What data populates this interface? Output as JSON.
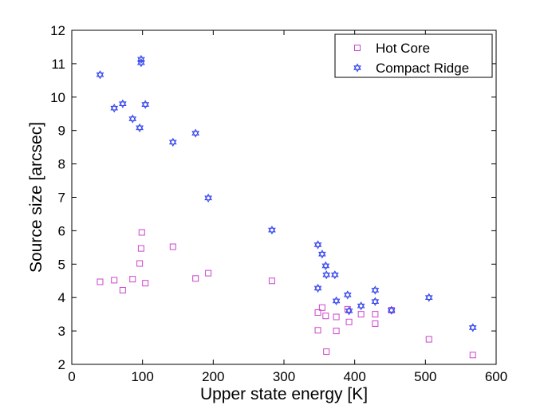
{
  "chart_data": {
    "type": "scatter",
    "title": "",
    "xlabel": "Upper state energy [K]",
    "ylabel": "Source size [arcsec]",
    "xlim": [
      0,
      600
    ],
    "ylim": [
      2,
      12
    ],
    "xticks": [
      "0",
      "100",
      "200",
      "300",
      "400",
      "500",
      "600"
    ],
    "yticks": [
      "2",
      "3",
      "4",
      "5",
      "6",
      "7",
      "8",
      "9",
      "10",
      "11",
      "12"
    ],
    "grid": false,
    "legend_position": "top-right",
    "series": [
      {
        "name": "Hot Core",
        "marker": "square",
        "color": "#cc44cc",
        "points": [
          [
            40,
            4.47
          ],
          [
            60,
            4.52
          ],
          [
            72,
            4.22
          ],
          [
            86,
            4.55
          ],
          [
            96,
            5.02
          ],
          [
            98,
            5.47
          ],
          [
            99,
            5.95
          ],
          [
            104,
            4.43
          ],
          [
            143,
            5.52
          ],
          [
            175,
            4.57
          ],
          [
            193,
            4.73
          ],
          [
            283,
            4.5
          ],
          [
            348,
            3.55
          ],
          [
            348,
            3.02
          ],
          [
            354,
            3.7
          ],
          [
            359,
            3.45
          ],
          [
            360,
            2.38
          ],
          [
            374,
            3.0
          ],
          [
            374,
            3.42
          ],
          [
            390,
            3.65
          ],
          [
            392,
            3.27
          ],
          [
            409,
            3.5
          ],
          [
            429,
            3.5
          ],
          [
            429,
            3.22
          ],
          [
            452,
            3.62
          ],
          [
            505,
            2.75
          ],
          [
            567,
            2.28
          ]
        ]
      },
      {
        "name": "Compact Ridge",
        "marker": "hexagram",
        "color": "#3344ee",
        "points": [
          [
            40,
            10.67
          ],
          [
            60,
            9.67
          ],
          [
            72,
            9.8
          ],
          [
            86,
            9.35
          ],
          [
            96,
            9.08
          ],
          [
            98,
            11.03
          ],
          [
            98,
            11.13
          ],
          [
            104,
            9.78
          ],
          [
            143,
            8.65
          ],
          [
            175,
            8.92
          ],
          [
            193,
            6.98
          ],
          [
            283,
            6.02
          ],
          [
            348,
            5.58
          ],
          [
            348,
            4.28
          ],
          [
            354,
            5.3
          ],
          [
            359,
            4.95
          ],
          [
            360,
            4.68
          ],
          [
            372,
            4.68
          ],
          [
            374,
            3.9
          ],
          [
            390,
            4.08
          ],
          [
            392,
            3.6
          ],
          [
            409,
            3.75
          ],
          [
            429,
            3.88
          ],
          [
            429,
            4.22
          ],
          [
            452,
            3.62
          ],
          [
            505,
            4.0
          ],
          [
            567,
            3.1
          ]
        ]
      }
    ]
  }
}
